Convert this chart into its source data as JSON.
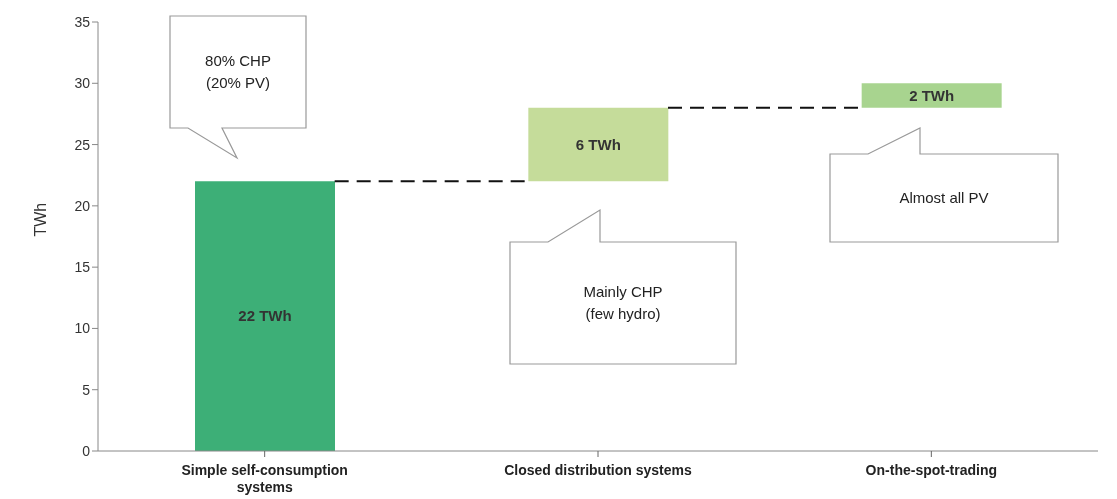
{
  "chart_data": {
    "type": "bar",
    "categories": [
      "Simple self-consumption systems",
      "Closed distribution systems",
      "On-the-spot-trading"
    ],
    "values": [
      22,
      6,
      2
    ],
    "base": [
      0,
      22,
      28
    ],
    "colors": [
      "#3daf77",
      "#c5dc9a",
      "#a8d48f"
    ],
    "value_labels": [
      "22 TWh",
      "6 TWh",
      "2 TWh"
    ],
    "ylabel": "TWh",
    "ylim": [
      0,
      35
    ],
    "yticks": [
      0,
      5,
      10,
      15,
      20,
      25,
      30,
      35
    ],
    "annotations": [
      "80% CHP (20% PV)",
      "Mainly CHP (few hydro)",
      "Almost all PV"
    ]
  }
}
